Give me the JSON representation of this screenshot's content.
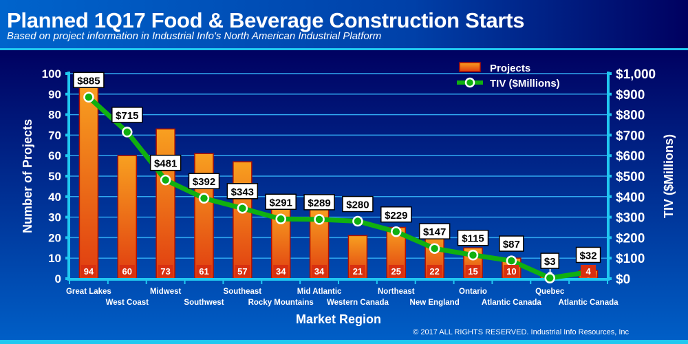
{
  "title": "Planned 1Q17 Food & Beverage Construction Starts",
  "subtitle": "Based on project information in Industrial Info's North American Industrial Platform",
  "copyright": "© 2017 ALL RIGHTS RESERVED. Industrial Info Resources, Inc",
  "colors": {
    "bar_top": "#f8a020",
    "bar_bottom": "#e03c10",
    "bar_border": "#b01000",
    "line": "#10b010",
    "axis": "#20c8f0",
    "header_left": "#0064cc",
    "header_right": "#000060"
  },
  "chart_data": {
    "type": "bar+line",
    "title": "Planned 1Q17 Food & Beverage Construction Starts",
    "xlabel": "Market Region",
    "ylabel": "Number of Projects",
    "y2label": "TIV ($Millions)",
    "ylim": [
      0,
      100
    ],
    "y2lim": [
      0,
      1000
    ],
    "yticks": [
      "0",
      "10",
      "20",
      "30",
      "40",
      "50",
      "60",
      "70",
      "80",
      "90",
      "100"
    ],
    "y2ticks": [
      "$0",
      "$100",
      "$200",
      "$300",
      "$400",
      "$500",
      "$600",
      "$700",
      "$800",
      "$900",
      "$1,000"
    ],
    "grid": true,
    "legend_placement": "top-right",
    "categories": [
      "Great Lakes",
      "West Coast",
      "Midwest",
      "Southwest",
      "Southeast",
      "Rocky Mountains",
      "Mid Atlantic",
      "Western Canada",
      "Northeast",
      "New England",
      "Ontario",
      "Atlantic Canada",
      "Quebec",
      "Atlantic Canada"
    ],
    "series": [
      {
        "name": "Projects",
        "type": "bar",
        "axis": "left",
        "values": [
          94,
          60,
          73,
          61,
          57,
          34,
          34,
          21,
          25,
          22,
          15,
          10,
          1,
          4
        ]
      },
      {
        "name": "TIV ($Millions)",
        "type": "line",
        "axis": "right",
        "values": [
          885,
          715,
          481,
          392,
          343,
          291,
          289,
          280,
          229,
          147,
          115,
          87,
          3,
          32
        ],
        "labels": [
          "$885",
          "$715",
          "$481",
          "$392",
          "$343",
          "$291",
          "$289",
          "$280",
          "$229",
          "$147",
          "$115",
          "$87",
          "$3",
          "$32"
        ]
      }
    ]
  }
}
